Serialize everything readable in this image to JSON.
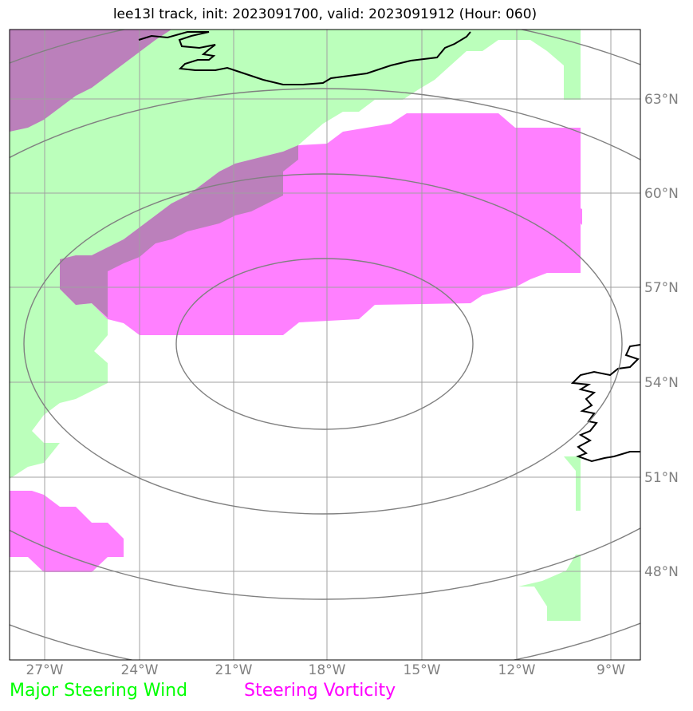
{
  "title": "lee13l track, init: 2023091700, valid: 2023091912 (Hour: 060)",
  "axes": {
    "lon_ticks": [
      "27°W",
      "24°W",
      "21°W",
      "18°W",
      "15°W",
      "12°W",
      "9°W"
    ],
    "lat_ticks": [
      "63°N",
      "60°N",
      "57°N",
      "54°N",
      "51°N",
      "48°N"
    ]
  },
  "legend": {
    "wind": {
      "label": "Major Steering Wind",
      "color": "#00ff00"
    },
    "vorticity": {
      "label": "Steering Vorticity",
      "color": "#ff00ff"
    }
  },
  "colors": {
    "wind_fill": "#bbffbb",
    "vorticity_fill": "#ff80ff",
    "overlap_fill": "#bb80bb",
    "contour": "#808080",
    "grid": "#a0a0a0",
    "coastline": "#000000"
  },
  "map": {
    "lon_range": [
      "28°W",
      "8°W"
    ],
    "lat_range": [
      "45°N",
      "65°N"
    ],
    "features": [
      "coastline-iceland",
      "coastline-ireland",
      "distance-rings"
    ]
  }
}
